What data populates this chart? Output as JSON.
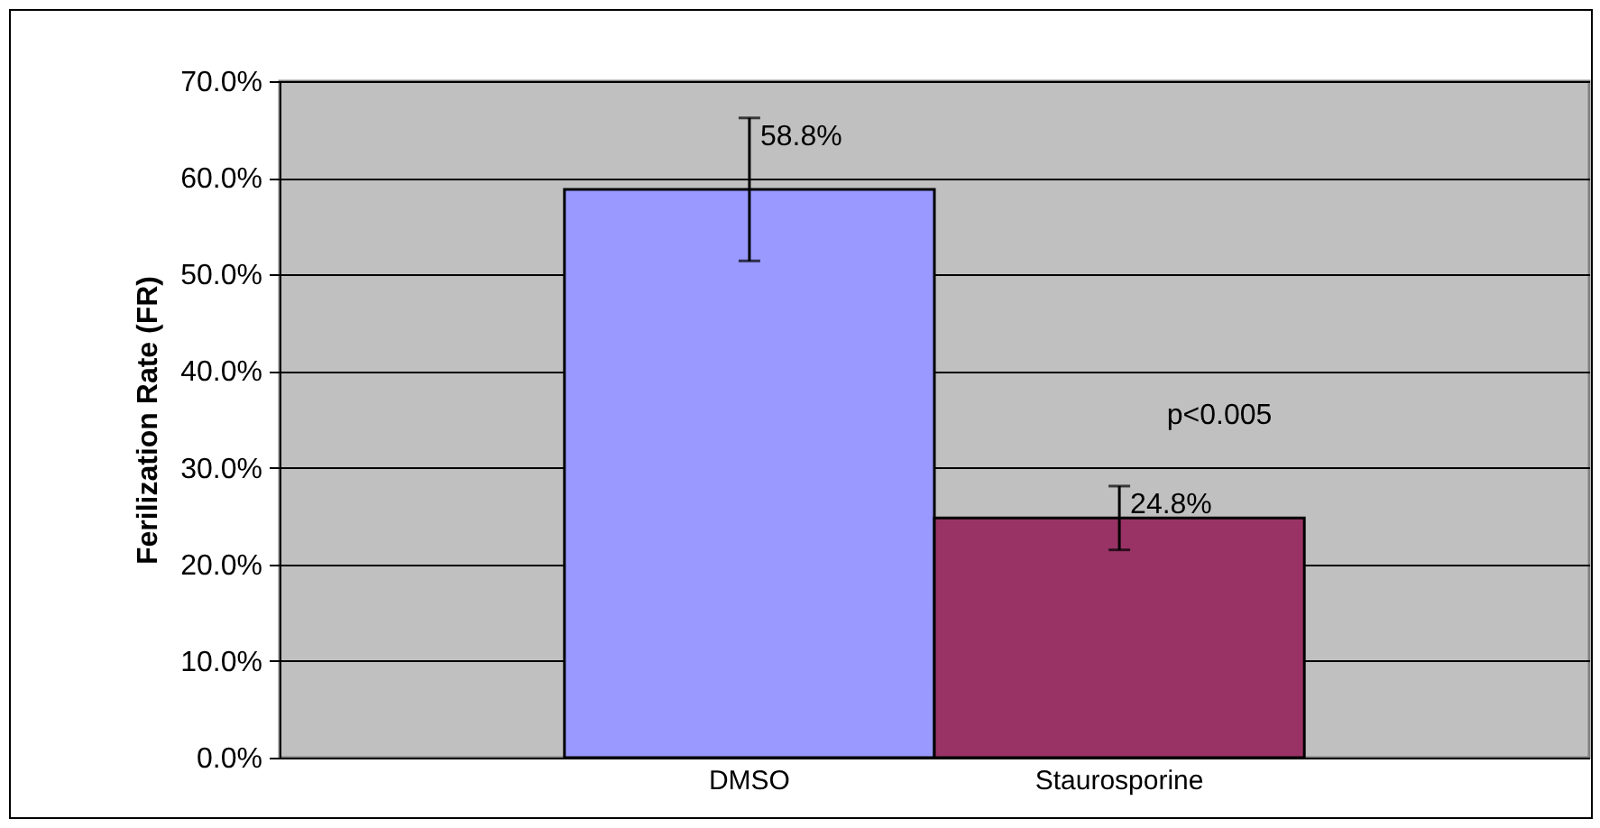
{
  "chart_data": {
    "type": "bar",
    "ylabel": "Ferilization Rate (FR)",
    "categories": [
      "DMSO",
      "Staurosporine"
    ],
    "values": [
      58.8,
      24.8
    ],
    "colors": [
      "#9999ff",
      "#993366"
    ],
    "errors": [
      7.4,
      3.3
    ],
    "value_labels": [
      "58.8%",
      "24.8%"
    ],
    "annotations": [
      "p<0.005"
    ],
    "ylim": [
      0,
      70
    ],
    "yticks": [
      {
        "value": 0,
        "label": "0.0%"
      },
      {
        "value": 10,
        "label": "10.0%"
      },
      {
        "value": 20,
        "label": "20.0%"
      },
      {
        "value": 30,
        "label": "30.0%"
      },
      {
        "value": 40,
        "label": "40.0%"
      },
      {
        "value": 50,
        "label": "50.0%"
      },
      {
        "value": 60,
        "label": "60.0%"
      },
      {
        "value": 70,
        "label": "70.0%"
      }
    ],
    "grid": "y"
  }
}
